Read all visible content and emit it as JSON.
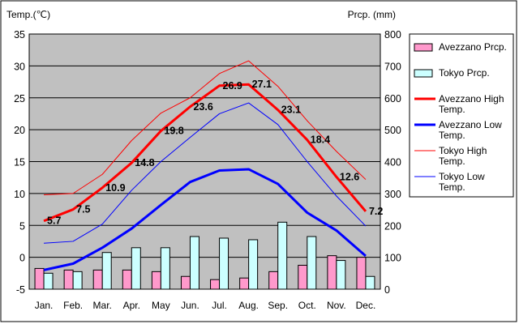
{
  "chart_data": {
    "type": "bar+line",
    "categories": [
      "Jan.",
      "Feb.",
      "Mar.",
      "Apr.",
      "May",
      "Jun.",
      "Jul.",
      "Aug.",
      "Sep.",
      "Oct.",
      "Nov.",
      "Dec."
    ],
    "left_axis": {
      "label": "Temp.(℃)",
      "range": [
        -5,
        35
      ],
      "ticks": [
        -5,
        0,
        5,
        10,
        15,
        20,
        25,
        30,
        35
      ]
    },
    "right_axis": {
      "label": "Prcp. (mm)",
      "range": [
        0,
        800
      ],
      "ticks": [
        0,
        100,
        200,
        300,
        400,
        500,
        600,
        700,
        800
      ]
    },
    "grid": true,
    "legend_position": "right",
    "bar_series": [
      {
        "name": "Avezzano Prcp.",
        "color": "#ff99cc",
        "values": [
          65,
          60,
          60,
          60,
          55,
          40,
          30,
          35,
          55,
          75,
          105,
          100
        ]
      },
      {
        "name": "Tokyo Prcp.",
        "color": "#ccffff",
        "values": [
          50,
          55,
          115,
          130,
          130,
          165,
          160,
          155,
          210,
          165,
          90,
          40
        ]
      }
    ],
    "line_series": [
      {
        "name": "Avezzano High Temp.",
        "color": "#ff0000",
        "width": 3,
        "values": [
          5.7,
          7.5,
          10.9,
          14.8,
          19.8,
          23.6,
          26.9,
          27.1,
          23.1,
          18.4,
          12.6,
          7.2
        ]
      },
      {
        "name": "Avezzano Low Temp.",
        "color": "#0000ff",
        "width": 3,
        "values": [
          -2.0,
          -1.0,
          1.5,
          4.5,
          8.2,
          11.8,
          13.6,
          13.8,
          11.5,
          7.0,
          4.2,
          0.2
        ]
      },
      {
        "name": "Tokyo High Temp.",
        "color": "#ff0000",
        "width": 1,
        "values": [
          9.8,
          10.0,
          13.0,
          18.3,
          22.6,
          25.0,
          28.8,
          30.8,
          26.8,
          21.4,
          16.6,
          12.2
        ]
      },
      {
        "name": "Tokyo Low Temp.",
        "color": "#0000ff",
        "width": 1,
        "values": [
          2.2,
          2.5,
          5.2,
          10.5,
          15.0,
          18.8,
          22.5,
          24.2,
          20.8,
          15.0,
          9.6,
          4.9
        ]
      }
    ],
    "data_labels": {
      "series": "Avezzano High Temp.",
      "texts": [
        "5.7",
        "7.5",
        "10.9",
        "14.8",
        "19.8",
        "23.6",
        "26.9",
        "27.1",
        "23.1",
        "18.4",
        "12.6",
        "7.2"
      ]
    },
    "legend": [
      {
        "label": "Avezzano Prcp.",
        "kind": "bar",
        "color": "#ff99cc"
      },
      {
        "label": "Tokyo Prcp.",
        "kind": "bar",
        "color": "#ccffff"
      },
      {
        "label": "Avezzano High Temp.",
        "kind": "line",
        "color": "#ff0000",
        "width": 3
      },
      {
        "label": "Avezzano Low Temp.",
        "kind": "line",
        "color": "#0000ff",
        "width": 3
      },
      {
        "label": "Tokyo High Temp.",
        "kind": "line",
        "color": "#ff0000",
        "width": 1
      },
      {
        "label": "Tokyo Low Temp.",
        "kind": "line",
        "color": "#0000ff",
        "width": 1
      }
    ]
  }
}
